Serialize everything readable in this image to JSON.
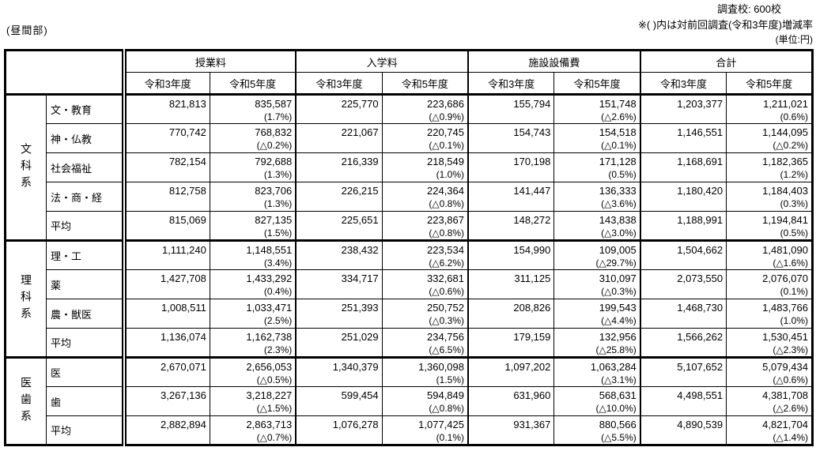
{
  "page": {
    "section_label": "(昼間部)",
    "survey_count": "調査校: 600校",
    "legend": "※( )内は対前回調査(令和3年度)増減率",
    "unit": "(単位:円)"
  },
  "table": {
    "column_groups": [
      {
        "label": "授業料",
        "sub": [
          "令和3年度",
          "令和5年度"
        ]
      },
      {
        "label": "入学料",
        "sub": [
          "令和3年度",
          "令和5年度"
        ]
      },
      {
        "label": "施設設備費",
        "sub": [
          "令和3年度",
          "令和5年度"
        ]
      },
      {
        "label": "合計",
        "sub": [
          "令和3年度",
          "令和5年度"
        ]
      }
    ],
    "groups": [
      {
        "label": "文科系",
        "rows": [
          {
            "label": "文・教育",
            "cells": [
              {
                "v": "821,813"
              },
              {
                "v": "835,587",
                "p": "(1.7%)"
              },
              {
                "v": "225,770"
              },
              {
                "v": "223,686",
                "p": "(△0.9%)"
              },
              {
                "v": "155,794"
              },
              {
                "v": "151,748",
                "p": "(△2.6%)"
              },
              {
                "v": "1,203,377"
              },
              {
                "v": "1,211,021",
                "p": "(0.6%)"
              }
            ]
          },
          {
            "label": "神・仏教",
            "cells": [
              {
                "v": "770,742"
              },
              {
                "v": "768,832",
                "p": "(△0.2%)"
              },
              {
                "v": "221,067"
              },
              {
                "v": "220,745",
                "p": "(△0.1%)"
              },
              {
                "v": "154,743"
              },
              {
                "v": "154,518",
                "p": "(△0.1%)"
              },
              {
                "v": "1,146,551"
              },
              {
                "v": "1,144,095",
                "p": "(△0.2%)"
              }
            ]
          },
          {
            "label": "社会福祉",
            "cells": [
              {
                "v": "782,154"
              },
              {
                "v": "792,688",
                "p": "(1.3%)"
              },
              {
                "v": "216,339"
              },
              {
                "v": "218,549",
                "p": "(1.0%)"
              },
              {
                "v": "170,198"
              },
              {
                "v": "171,128",
                "p": "(0.5%)"
              },
              {
                "v": "1,168,691"
              },
              {
                "v": "1,182,365",
                "p": "(1.2%)"
              }
            ]
          },
          {
            "label": "法・商・経",
            "cells": [
              {
                "v": "812,758"
              },
              {
                "v": "823,706",
                "p": "(1.3%)"
              },
              {
                "v": "226,215"
              },
              {
                "v": "224,364",
                "p": "(△0.8%)"
              },
              {
                "v": "141,447"
              },
              {
                "v": "136,333",
                "p": "(△3.6%)"
              },
              {
                "v": "1,180,420"
              },
              {
                "v": "1,184,403",
                "p": "(0.3%)"
              }
            ]
          },
          {
            "label": "平均",
            "cells": [
              {
                "v": "815,069"
              },
              {
                "v": "827,135",
                "p": "(1.5%)"
              },
              {
                "v": "225,651"
              },
              {
                "v": "223,867",
                "p": "(△0.8%)"
              },
              {
                "v": "148,272"
              },
              {
                "v": "143,838",
                "p": "(△3.0%)"
              },
              {
                "v": "1,188,991"
              },
              {
                "v": "1,194,841",
                "p": "(0.5%)"
              }
            ]
          }
        ]
      },
      {
        "label": "理科系",
        "rows": [
          {
            "label": "理・工",
            "cells": [
              {
                "v": "1,111,240"
              },
              {
                "v": "1,148,551",
                "p": "(3.4%)"
              },
              {
                "v": "238,432"
              },
              {
                "v": "223,534",
                "p": "(△6.2%)"
              },
              {
                "v": "154,990"
              },
              {
                "v": "109,005",
                "p": "(△29.7%)"
              },
              {
                "v": "1,504,662"
              },
              {
                "v": "1,481,090",
                "p": "(△1.6%)"
              }
            ]
          },
          {
            "label": "薬",
            "cells": [
              {
                "v": "1,427,708"
              },
              {
                "v": "1,433,292",
                "p": "(0.4%)"
              },
              {
                "v": "334,717"
              },
              {
                "v": "332,681",
                "p": "(△0.6%)"
              },
              {
                "v": "311,125"
              },
              {
                "v": "310,097",
                "p": "(△0.3%)"
              },
              {
                "v": "2,073,550"
              },
              {
                "v": "2,076,070",
                "p": "(0.1%)"
              }
            ]
          },
          {
            "label": "農・獣医",
            "cells": [
              {
                "v": "1,008,511"
              },
              {
                "v": "1,033,471",
                "p": "(2.5%)"
              },
              {
                "v": "251,393"
              },
              {
                "v": "250,752",
                "p": "(△0.3%)"
              },
              {
                "v": "208,826"
              },
              {
                "v": "199,543",
                "p": "(△4.4%)"
              },
              {
                "v": "1,468,730"
              },
              {
                "v": "1,483,766",
                "p": "(1.0%)"
              }
            ]
          },
          {
            "label": "平均",
            "cells": [
              {
                "v": "1,136,074"
              },
              {
                "v": "1,162,738",
                "p": "(2.3%)"
              },
              {
                "v": "251,029"
              },
              {
                "v": "234,756",
                "p": "(△6.5%)"
              },
              {
                "v": "179,159"
              },
              {
                "v": "132,956",
                "p": "(△25.8%)"
              },
              {
                "v": "1,566,262"
              },
              {
                "v": "1,530,451",
                "p": "(△2.3%)"
              }
            ]
          }
        ]
      },
      {
        "label": "医歯系",
        "rows": [
          {
            "label": "医",
            "cells": [
              {
                "v": "2,670,071"
              },
              {
                "v": "2,656,053",
                "p": "(△0.5%)"
              },
              {
                "v": "1,340,379"
              },
              {
                "v": "1,360,098",
                "p": "(1.5%)"
              },
              {
                "v": "1,097,202"
              },
              {
                "v": "1,063,284",
                "p": "(△3.1%)"
              },
              {
                "v": "5,107,652"
              },
              {
                "v": "5,079,434",
                "p": "(△0.6%)"
              }
            ]
          },
          {
            "label": "歯",
            "cells": [
              {
                "v": "3,267,136"
              },
              {
                "v": "3,218,227",
                "p": "(△1.5%)"
              },
              {
                "v": "599,454"
              },
              {
                "v": "594,849",
                "p": "(△0.8%)"
              },
              {
                "v": "631,960"
              },
              {
                "v": "568,631",
                "p": "(△10.0%)"
              },
              {
                "v": "4,498,551"
              },
              {
                "v": "4,381,708",
                "p": "(△2.6%)"
              }
            ]
          },
          {
            "label": "平均",
            "cells": [
              {
                "v": "2,882,894"
              },
              {
                "v": "2,863,713",
                "p": "(△0.7%)"
              },
              {
                "v": "1,076,278"
              },
              {
                "v": "1,077,425",
                "p": "(0.1%)"
              },
              {
                "v": "931,367"
              },
              {
                "v": "880,566",
                "p": "(△5.5%)"
              },
              {
                "v": "4,890,539"
              },
              {
                "v": "4,821,704",
                "p": "(△1.4%)"
              }
            ]
          }
        ]
      }
    ]
  }
}
